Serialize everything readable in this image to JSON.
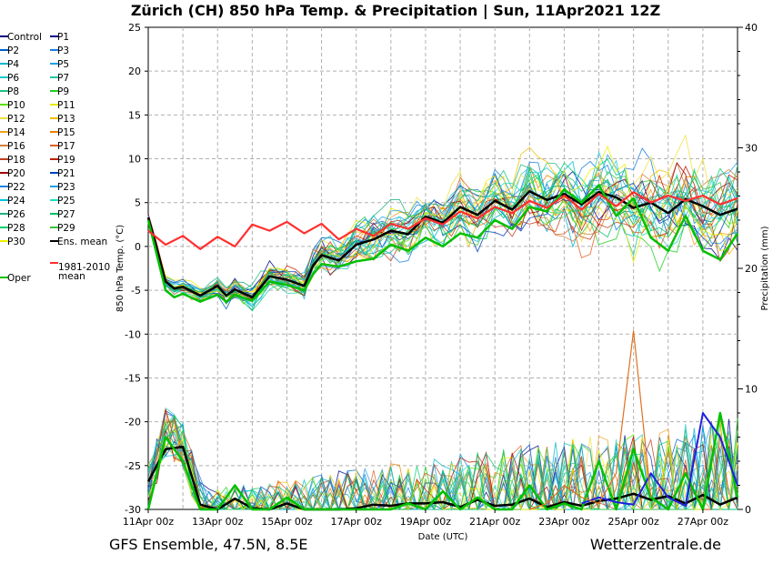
{
  "chart_data": {
    "type": "line",
    "title": "Zürich  (CH)  850 hPa Temp. & Precipitation | Sun, 11Apr2021 12Z",
    "xlabel": "Date (UTC)",
    "ylabel": "850 hPa Temp. (°C)",
    "y2label": "Precipitation (mm)",
    "ylim": [
      -30,
      25
    ],
    "y2lim": [
      0,
      40
    ],
    "yticks": [
      "25",
      "20",
      "15",
      "10",
      "5",
      "0",
      "-5",
      "-10",
      "-15",
      "-20",
      "-25",
      "-30"
    ],
    "y2ticks": [
      "40",
      "30",
      "20",
      "10",
      "0"
    ],
    "xticks": [
      "11Apr 00z",
      "13Apr 00z",
      "15Apr 00z",
      "17Apr 00z",
      "19Apr 00z",
      "21Apr 00z",
      "23Apr 00z",
      "25Apr 00z",
      "27Apr 00z"
    ],
    "x_hours_range": [
      0,
      408
    ],
    "grid": true,
    "legend_position": "left",
    "footer_left": "GFS Ensemble, 47.5N, 8.5E",
    "footer_right": "Wetterzentrale.de",
    "legend": [
      {
        "label": "Control",
        "color": "#000080"
      },
      {
        "label": "P1",
        "color": "#00008b"
      },
      {
        "label": "P2",
        "color": "#0060c0"
      },
      {
        "label": "P3",
        "color": "#1e7fe0"
      },
      {
        "label": "P4",
        "color": "#00b4d0"
      },
      {
        "label": "P5",
        "color": "#1ea0f0"
      },
      {
        "label": "P6",
        "color": "#20c8c8"
      },
      {
        "label": "P7",
        "color": "#20c8a0"
      },
      {
        "label": "P8",
        "color": "#20c080"
      },
      {
        "label": "P9",
        "color": "#20d020"
      },
      {
        "label": "P10",
        "color": "#60e000"
      },
      {
        "label": "P11",
        "color": "#e8e800"
      },
      {
        "label": "P12",
        "color": "#f0e040"
      },
      {
        "label": "P13",
        "color": "#f0c000"
      },
      {
        "label": "P14",
        "color": "#f0a020"
      },
      {
        "label": "P15",
        "color": "#f08000"
      },
      {
        "label": "P16",
        "color": "#d08040"
      },
      {
        "label": "P17",
        "color": "#e06020"
      },
      {
        "label": "P18",
        "color": "#c04020"
      },
      {
        "label": "P19",
        "color": "#c02000"
      },
      {
        "label": "P20",
        "color": "#a00000"
      },
      {
        "label": "P21",
        "color": "#0040c0"
      },
      {
        "label": "P22",
        "color": "#2080e0"
      },
      {
        "label": "P23",
        "color": "#20a0e0"
      },
      {
        "label": "P24",
        "color": "#00c0e0"
      },
      {
        "label": "P25",
        "color": "#20e0c0"
      },
      {
        "label": "P26",
        "color": "#20b080"
      },
      {
        "label": "P27",
        "color": "#00c060"
      },
      {
        "label": "P28",
        "color": "#00d070"
      },
      {
        "label": "P29",
        "color": "#40c040"
      },
      {
        "label": "P30",
        "color": "#f0f000"
      },
      {
        "label": "Ens. mean",
        "color": "#000000"
      },
      {
        "label": "Oper",
        "color": "#00c000"
      },
      {
        "label": "1981-2010 mean",
        "color": "#ff3030"
      }
    ],
    "series": [
      {
        "name": "Ens. mean",
        "x": [
          0,
          12,
          18,
          24,
          36,
          48,
          54,
          60,
          72,
          84,
          96,
          108,
          114,
          120,
          132,
          144,
          156,
          168,
          180,
          192,
          204,
          216,
          228,
          240,
          252,
          264,
          276,
          288,
          300,
          312,
          324,
          336,
          348,
          360,
          372,
          384,
          396,
          408
        ],
        "values": [
          3.3,
          -4.0,
          -4.8,
          -4.6,
          -5.6,
          -4.5,
          -5.6,
          -4.9,
          -5.8,
          -3.4,
          -3.8,
          -4.5,
          -2.2,
          -1.0,
          -1.6,
          0.2,
          0.8,
          1.8,
          1.4,
          3.4,
          2.7,
          4.5,
          3.6,
          5.2,
          4.2,
          6.3,
          5.3,
          6.0,
          4.8,
          6.2,
          5.6,
          4.4,
          5.0,
          3.8,
          5.4,
          4.6,
          3.6,
          4.3
        ]
      },
      {
        "name": "Oper",
        "x": [
          0,
          12,
          18,
          24,
          36,
          48,
          54,
          60,
          72,
          84,
          96,
          108,
          114,
          120,
          132,
          144,
          156,
          168,
          180,
          192,
          204,
          216,
          228,
          240,
          252,
          264,
          276,
          288,
          300,
          312,
          324,
          336,
          348,
          360,
          372,
          384,
          396,
          408
        ],
        "values": [
          3.0,
          -5.0,
          -5.8,
          -5.4,
          -6.3,
          -5.5,
          -6.3,
          -5.5,
          -6.2,
          -4.0,
          -4.4,
          -5.0,
          -3.2,
          -2.0,
          -2.3,
          -1.7,
          -1.4,
          0.2,
          -0.5,
          1.0,
          0.0,
          1.5,
          1.0,
          3.0,
          2.0,
          4.5,
          4.0,
          6.5,
          5.0,
          7.0,
          3.5,
          5.5,
          1.0,
          -0.5,
          3.5,
          -0.5,
          -1.5,
          1.5
        ]
      },
      {
        "name": "1981-2010 mean",
        "x": [
          0,
          12,
          24,
          36,
          48,
          60,
          72,
          84,
          96,
          108,
          120,
          132,
          144,
          156,
          168,
          180,
          192,
          204,
          216,
          228,
          240,
          252,
          264,
          276,
          288,
          300,
          312,
          324,
          336,
          348,
          360,
          372,
          384,
          396,
          408
        ],
        "values": [
          1.8,
          0.2,
          1.2,
          -0.3,
          1.1,
          0.0,
          2.5,
          1.8,
          2.8,
          1.5,
          2.6,
          0.8,
          2.0,
          1.2,
          2.6,
          2.0,
          3.2,
          2.5,
          4.0,
          3.2,
          4.5,
          3.8,
          5.2,
          4.4,
          5.8,
          4.2,
          6.0,
          4.6,
          6.2,
          5.0,
          5.8,
          5.2,
          5.8,
          4.8,
          5.5
        ]
      }
    ],
    "precipitation": [
      {
        "name": "Ens. mean",
        "x": [
          0,
          12,
          24,
          36,
          48,
          60,
          72,
          84,
          96,
          108,
          120,
          132,
          144,
          156,
          168,
          180,
          192,
          204,
          216,
          228,
          240,
          252,
          264,
          276,
          288,
          300,
          312,
          324,
          336,
          348,
          360,
          372,
          384,
          396,
          408
        ],
        "values": [
          2.3,
          5.0,
          5.2,
          0.4,
          0.0,
          0.9,
          0.1,
          0.0,
          0.5,
          0.0,
          0.0,
          0.0,
          0.1,
          0.4,
          0.3,
          0.5,
          0.5,
          0.6,
          0.2,
          0.8,
          0.3,
          0.4,
          0.9,
          0.2,
          0.6,
          0.3,
          0.7,
          0.9,
          1.3,
          0.8,
          1.1,
          0.5,
          1.2,
          0.4,
          1.0
        ]
      },
      {
        "name": "Oper",
        "x": [
          0,
          12,
          24,
          36,
          48,
          60,
          72,
          84,
          96,
          108,
          120,
          132,
          144,
          156,
          168,
          180,
          192,
          204,
          216,
          228,
          240,
          252,
          264,
          276,
          288,
          300,
          312,
          324,
          336,
          348,
          360,
          372,
          384,
          396,
          408
        ],
        "values": [
          0.0,
          6.0,
          4.0,
          0.0,
          0.0,
          2.0,
          0.0,
          0.0,
          1.0,
          0.0,
          0.0,
          0.0,
          0.0,
          0.0,
          0.0,
          0.5,
          0.0,
          1.5,
          0.0,
          1.0,
          0.0,
          0.0,
          2.0,
          0.0,
          0.5,
          0.0,
          4.0,
          0.0,
          5.0,
          1.0,
          0.0,
          3.0,
          0.0,
          8.0,
          1.0
        ]
      },
      {
        "name": "P1",
        "x": [
          300,
          312,
          324,
          336,
          348,
          360,
          372,
          384,
          396,
          408
        ],
        "values": [
          0.5,
          1.0,
          0.6,
          0.4,
          3.0,
          1.0,
          0.3,
          8.0,
          6.0,
          2.0
        ]
      },
      {
        "name": "P15",
        "x": [
          264,
          276,
          288,
          300,
          312,
          324,
          336,
          348
        ],
        "values": [
          0.0,
          0.5,
          2.0,
          1.0,
          0.5,
          3.0,
          14.8,
          1.0
        ]
      }
    ]
  }
}
